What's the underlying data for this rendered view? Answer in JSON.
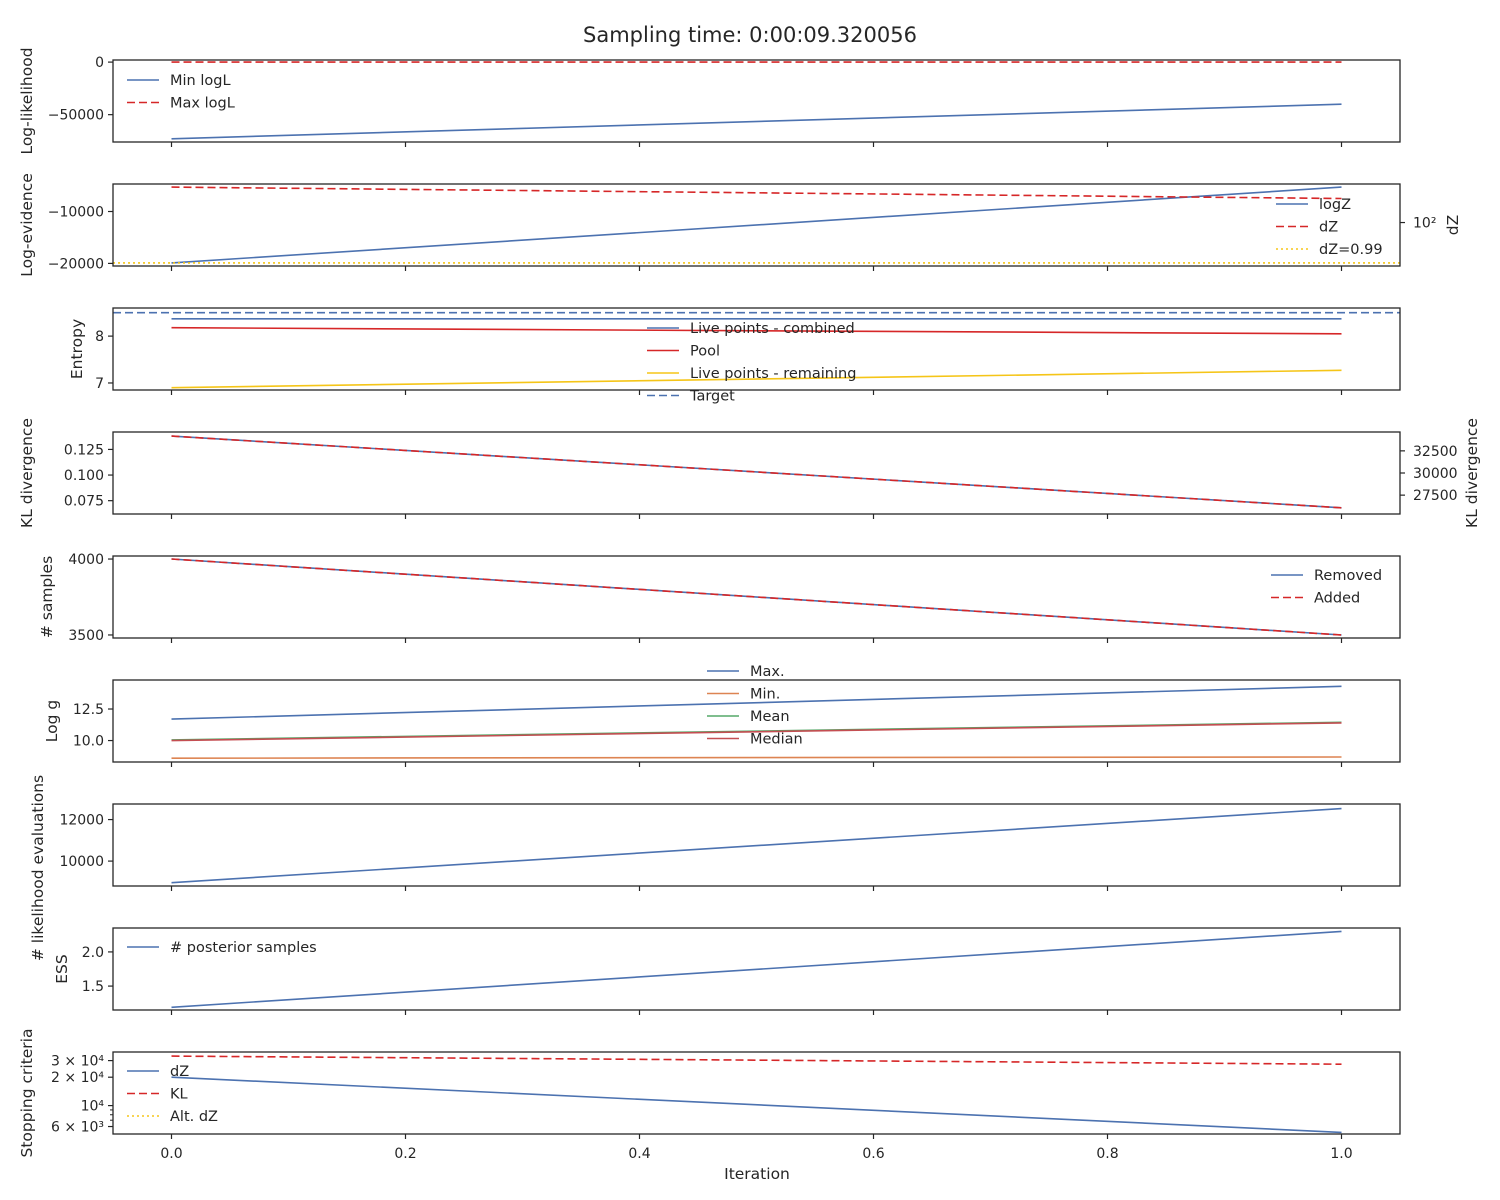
{
  "title": "Sampling time: 0:00:09.320056",
  "x_label": "Iteration",
  "x_range": [
    -0.05,
    1.05
  ],
  "x_ticks": [
    "0.0",
    "0.2",
    "0.4",
    "0.6",
    "0.8",
    "1.0"
  ],
  "colors": {
    "blue": "#4c72b0",
    "red": "#d62728",
    "gold": "#f5c518",
    "orange": "#dd8452",
    "green": "#55a868",
    "brown": "#c44e52"
  },
  "chart_data": [
    {
      "type": "line",
      "ylabel": "Log-likelihood",
      "ylim": [
        -76000,
        2000
      ],
      "yticks": [
        {
          "v": 0,
          "t": "0"
        },
        {
          "v": -50000,
          "t": "−50000"
        }
      ],
      "legend": "upper left",
      "series": [
        {
          "name": "Min logL",
          "color": "blue",
          "dash": "solid",
          "x": [
            0,
            1
          ],
          "y": [
            -73000,
            -40000
          ]
        },
        {
          "name": "Max logL",
          "color": "red",
          "dash": "dashed",
          "x": [
            0,
            1
          ],
          "y": [
            0,
            0
          ]
        }
      ]
    },
    {
      "type": "line",
      "ylabel": "Log-evidence",
      "ylim": [
        -20500,
        -4700
      ],
      "yticks": [
        {
          "v": -10000,
          "t": "−10000"
        },
        {
          "v": -20000,
          "t": "−20000"
        }
      ],
      "right_axis": {
        "label": "dZ",
        "ticks": [
          {
            "t": "10²",
            "frac": 0.47
          }
        ]
      },
      "legend": "right",
      "series": [
        {
          "name": "logZ",
          "color": "blue",
          "dash": "solid",
          "x": [
            0,
            1
          ],
          "y": [
            -19900,
            -5300
          ]
        },
        {
          "name": "dZ",
          "color": "red",
          "dash": "dashed",
          "x": [
            0,
            1
          ],
          "y": [
            -5300,
            -7500
          ]
        },
        {
          "name": "dZ=0.99",
          "color": "gold",
          "dash": "dotted",
          "x": [
            -0.05,
            1.05
          ],
          "y": [
            -19900,
            -19900
          ]
        }
      ]
    },
    {
      "type": "line",
      "ylabel": "Entropy",
      "ylim": [
        6.85,
        8.6
      ],
      "yticks": [
        {
          "v": 8,
          "t": "8"
        },
        {
          "v": 7,
          "t": "7"
        }
      ],
      "legend": "center",
      "series": [
        {
          "name": "Live points - combined",
          "color": "blue",
          "dash": "solid",
          "x": [
            0,
            1
          ],
          "y": [
            8.37,
            8.37
          ]
        },
        {
          "name": "Pool",
          "color": "red",
          "dash": "solid",
          "x": [
            0,
            1
          ],
          "y": [
            8.18,
            8.05
          ]
        },
        {
          "name": "Live points - remaining",
          "color": "gold",
          "dash": "solid",
          "x": [
            0,
            1
          ],
          "y": [
            6.9,
            7.27
          ]
        },
        {
          "name": "Target",
          "color": "blue",
          "dash": "dashed",
          "x": [
            -0.05,
            1.05
          ],
          "y": [
            8.5,
            8.5
          ]
        }
      ]
    },
    {
      "type": "line",
      "ylabel": "KL divergence",
      "ylim": [
        0.062,
        0.142
      ],
      "yticks": [
        {
          "v": 0.125,
          "t": "0.125"
        },
        {
          "v": 0.1,
          "t": "0.100"
        },
        {
          "v": 0.075,
          "t": "0.075"
        }
      ],
      "right_axis": {
        "label": "KL divergence",
        "ticks": [
          {
            "t": "32500",
            "frac": 0.23
          },
          {
            "t": "30000",
            "frac": 0.5
          },
          {
            "t": "27500",
            "frac": 0.77
          }
        ]
      },
      "series": [
        {
          "name": "",
          "color": "blue",
          "dash": "solid",
          "x": [
            0,
            1
          ],
          "y": [
            0.138,
            0.068
          ]
        },
        {
          "name": "",
          "color": "red",
          "dash": "dashed",
          "x": [
            0,
            1
          ],
          "y": [
            0.138,
            0.068
          ]
        }
      ]
    },
    {
      "type": "line",
      "ylabel": "# samples",
      "ylim": [
        3480,
        4020
      ],
      "yticks": [
        {
          "v": 4000,
          "t": "4000"
        },
        {
          "v": 3500,
          "t": "3500"
        }
      ],
      "legend": "right",
      "series": [
        {
          "name": "Removed",
          "color": "blue",
          "dash": "solid",
          "x": [
            0,
            1
          ],
          "y": [
            4000,
            3500
          ]
        },
        {
          "name": "Added",
          "color": "red",
          "dash": "dashed",
          "x": [
            0,
            1
          ],
          "y": [
            4000,
            3500
          ]
        }
      ]
    },
    {
      "type": "line",
      "ylabel": "Log g",
      "ylim": [
        8.3,
        14.8
      ],
      "yticks": [
        {
          "v": 12.5,
          "t": "12.5"
        },
        {
          "v": 10.0,
          "t": "10.0"
        }
      ],
      "legend": "upper center",
      "series": [
        {
          "name": "Max.",
          "color": "blue",
          "dash": "solid",
          "x": [
            0,
            1
          ],
          "y": [
            11.7,
            14.3
          ]
        },
        {
          "name": "Min.",
          "color": "orange",
          "dash": "solid",
          "x": [
            0,
            1
          ],
          "y": [
            8.6,
            8.7
          ]
        },
        {
          "name": "Mean",
          "color": "green",
          "dash": "solid",
          "x": [
            0,
            1
          ],
          "y": [
            10.05,
            11.45
          ]
        },
        {
          "name": "Median",
          "color": "brown",
          "dash": "solid",
          "x": [
            0,
            1
          ],
          "y": [
            10.0,
            11.4
          ]
        }
      ]
    },
    {
      "type": "line",
      "ylabel": "# likelihood evaluations",
      "ylim": [
        8800,
        12750
      ],
      "yticks": [
        {
          "v": 12000,
          "t": "12000"
        },
        {
          "v": 10000,
          "t": "10000"
        }
      ],
      "series": [
        {
          "name": "",
          "color": "blue",
          "dash": "solid",
          "x": [
            0,
            1
          ],
          "y": [
            8960,
            12530
          ]
        }
      ]
    },
    {
      "type": "line",
      "ylabel": "ESS",
      "ylim": [
        1.15,
        2.35
      ],
      "yticks": [
        {
          "v": 2.0,
          "t": "2.0"
        },
        {
          "v": 1.5,
          "t": "1.5"
        }
      ],
      "legend": "upper left",
      "series": [
        {
          "name": "# posterior samples",
          "color": "blue",
          "dash": "solid",
          "x": [
            0,
            1
          ],
          "y": [
            1.19,
            2.3
          ]
        }
      ]
    },
    {
      "type": "line",
      "ylabel": "Stopping criteria",
      "yscale": "log",
      "ylim": [
        5000,
        37000
      ],
      "yticks": [
        {
          "v": 30000,
          "t": "3 × 10⁴"
        },
        {
          "v": 20000,
          "t": "2 × 10⁴"
        },
        {
          "v": 10000,
          "t": "10⁴"
        },
        {
          "v": 6000,
          "t": "6 × 10³"
        }
      ],
      "minor_yticks": [
        7000,
        8000,
        9000
      ],
      "legend": "upper left",
      "series": [
        {
          "name": "dZ",
          "color": "blue",
          "dash": "solid",
          "x": [
            0,
            1
          ],
          "y": [
            20000,
            5200
          ]
        },
        {
          "name": "KL",
          "color": "red",
          "dash": "dashed",
          "x": [
            0,
            1
          ],
          "y": [
            33500,
            27500
          ]
        },
        {
          "name": "Alt. dZ",
          "color": "gold",
          "dash": "dotted",
          "x": [],
          "y": []
        }
      ]
    }
  ]
}
